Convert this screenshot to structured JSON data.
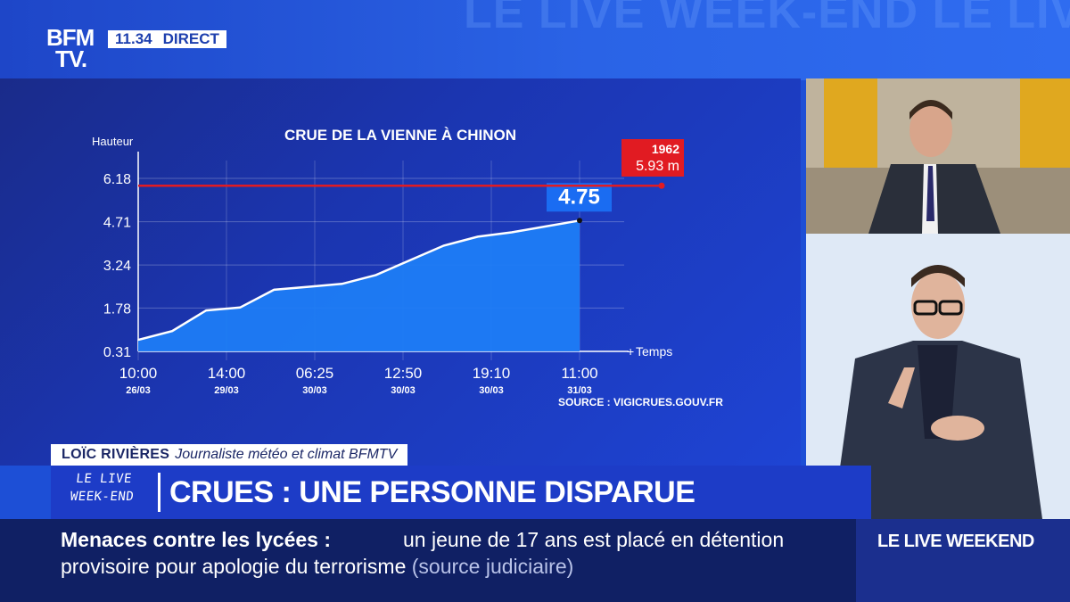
{
  "header": {
    "logo_line1": "BFM",
    "logo_line2": "TV.",
    "time": "11.34",
    "live_label": "DIRECT",
    "watermark_text": "LE LIVE WEEK-END LE LIVE WEEK-END LE LIVE WEEK-END"
  },
  "chart_data": {
    "type": "area",
    "title": "CRUE DE LA VIENNE À CHINON",
    "ylabel": "Hauteur",
    "xlabel": "Temps",
    "y_ticks": [
      "0.31",
      "1.78",
      "3.24",
      "4.71",
      "6.18"
    ],
    "x_ticks": [
      {
        "time": "10:00",
        "date": "26/03"
      },
      {
        "time": "14:00",
        "date": "29/03"
      },
      {
        "time": "06:25",
        "date": "30/03"
      },
      {
        "time": "12:50",
        "date": "30/03"
      },
      {
        "time": "19:10",
        "date": "30/03"
      },
      {
        "time": "11:00",
        "date": "31/03"
      }
    ],
    "ylim": [
      0.31,
      6.18
    ],
    "series": [
      {
        "values": [
          0.7,
          1.0,
          1.7,
          1.8,
          2.4,
          2.5,
          2.6,
          2.9,
          3.4,
          3.9,
          4.2,
          4.35,
          4.55,
          4.75
        ]
      }
    ],
    "last_value_label": "4.75",
    "reference": {
      "year": "1962",
      "value": 5.93,
      "label": "5.93 m"
    },
    "source": "SOURCE : VIGICRUES.GOUV.FR",
    "colors": {
      "area": "#1e7cf5",
      "line": "#ffffff",
      "reference": "#e11b22"
    }
  },
  "lower_third": {
    "name": "LOÏC RIVIÈRES",
    "title": "Journaliste météo et climat BFMTV",
    "show_tag_line1": "LE LIVE",
    "show_tag_line2": "WEEK-END",
    "headline": "CRUES : UNE PERSONNE DISPARUE"
  },
  "ticker": {
    "lead": "Menaces contre les lycées  :",
    "line1": "un jeune de 17 ans est placé en détention",
    "line2": "provisoire pour apologie du terrorisme",
    "source": "(source judiciaire)",
    "brand": "LE LIVE WEEKEND"
  }
}
